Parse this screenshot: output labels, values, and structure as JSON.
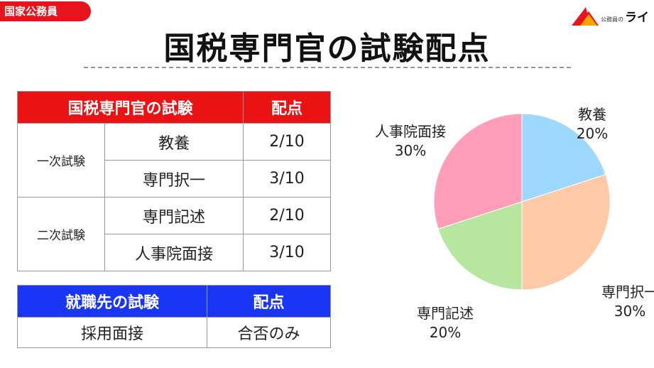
{
  "badge": "国家公務員",
  "logo": {
    "small": "公務員の",
    "big": "ライ"
  },
  "title": "国税専門官の試験配点",
  "table1": {
    "header": [
      "国税専門官の試験",
      "配点"
    ],
    "groups": [
      {
        "label": "一次試験",
        "rows": [
          {
            "name": "教養",
            "score": "2/10"
          },
          {
            "name": "専門択一",
            "score": "3/10"
          }
        ]
      },
      {
        "label": "二次試験",
        "rows": [
          {
            "name": "専門記述",
            "score": "2/10"
          },
          {
            "name": "人事院面接",
            "score": "3/10"
          }
        ]
      }
    ]
  },
  "table2": {
    "header": [
      "就職先の試験",
      "配点"
    ],
    "rows": [
      {
        "name": "採用面接",
        "score": "合否のみ"
      }
    ]
  },
  "chart_data": {
    "type": "pie",
    "start": "12 o'clock, clockwise",
    "slices": [
      {
        "label": "教養",
        "pct_label": "20%",
        "value": 20,
        "color": "#9dd8ff"
      },
      {
        "label": "専門択一",
        "pct_label": "30%",
        "value": 30,
        "color": "#ffcaa8"
      },
      {
        "label": "専門記述",
        "pct_label": "20%",
        "value": 20,
        "color": "#b6e6a0"
      },
      {
        "label": "人事院面接",
        "pct_label": "30%",
        "value": 30,
        "color": "#ff9eb8"
      }
    ]
  }
}
